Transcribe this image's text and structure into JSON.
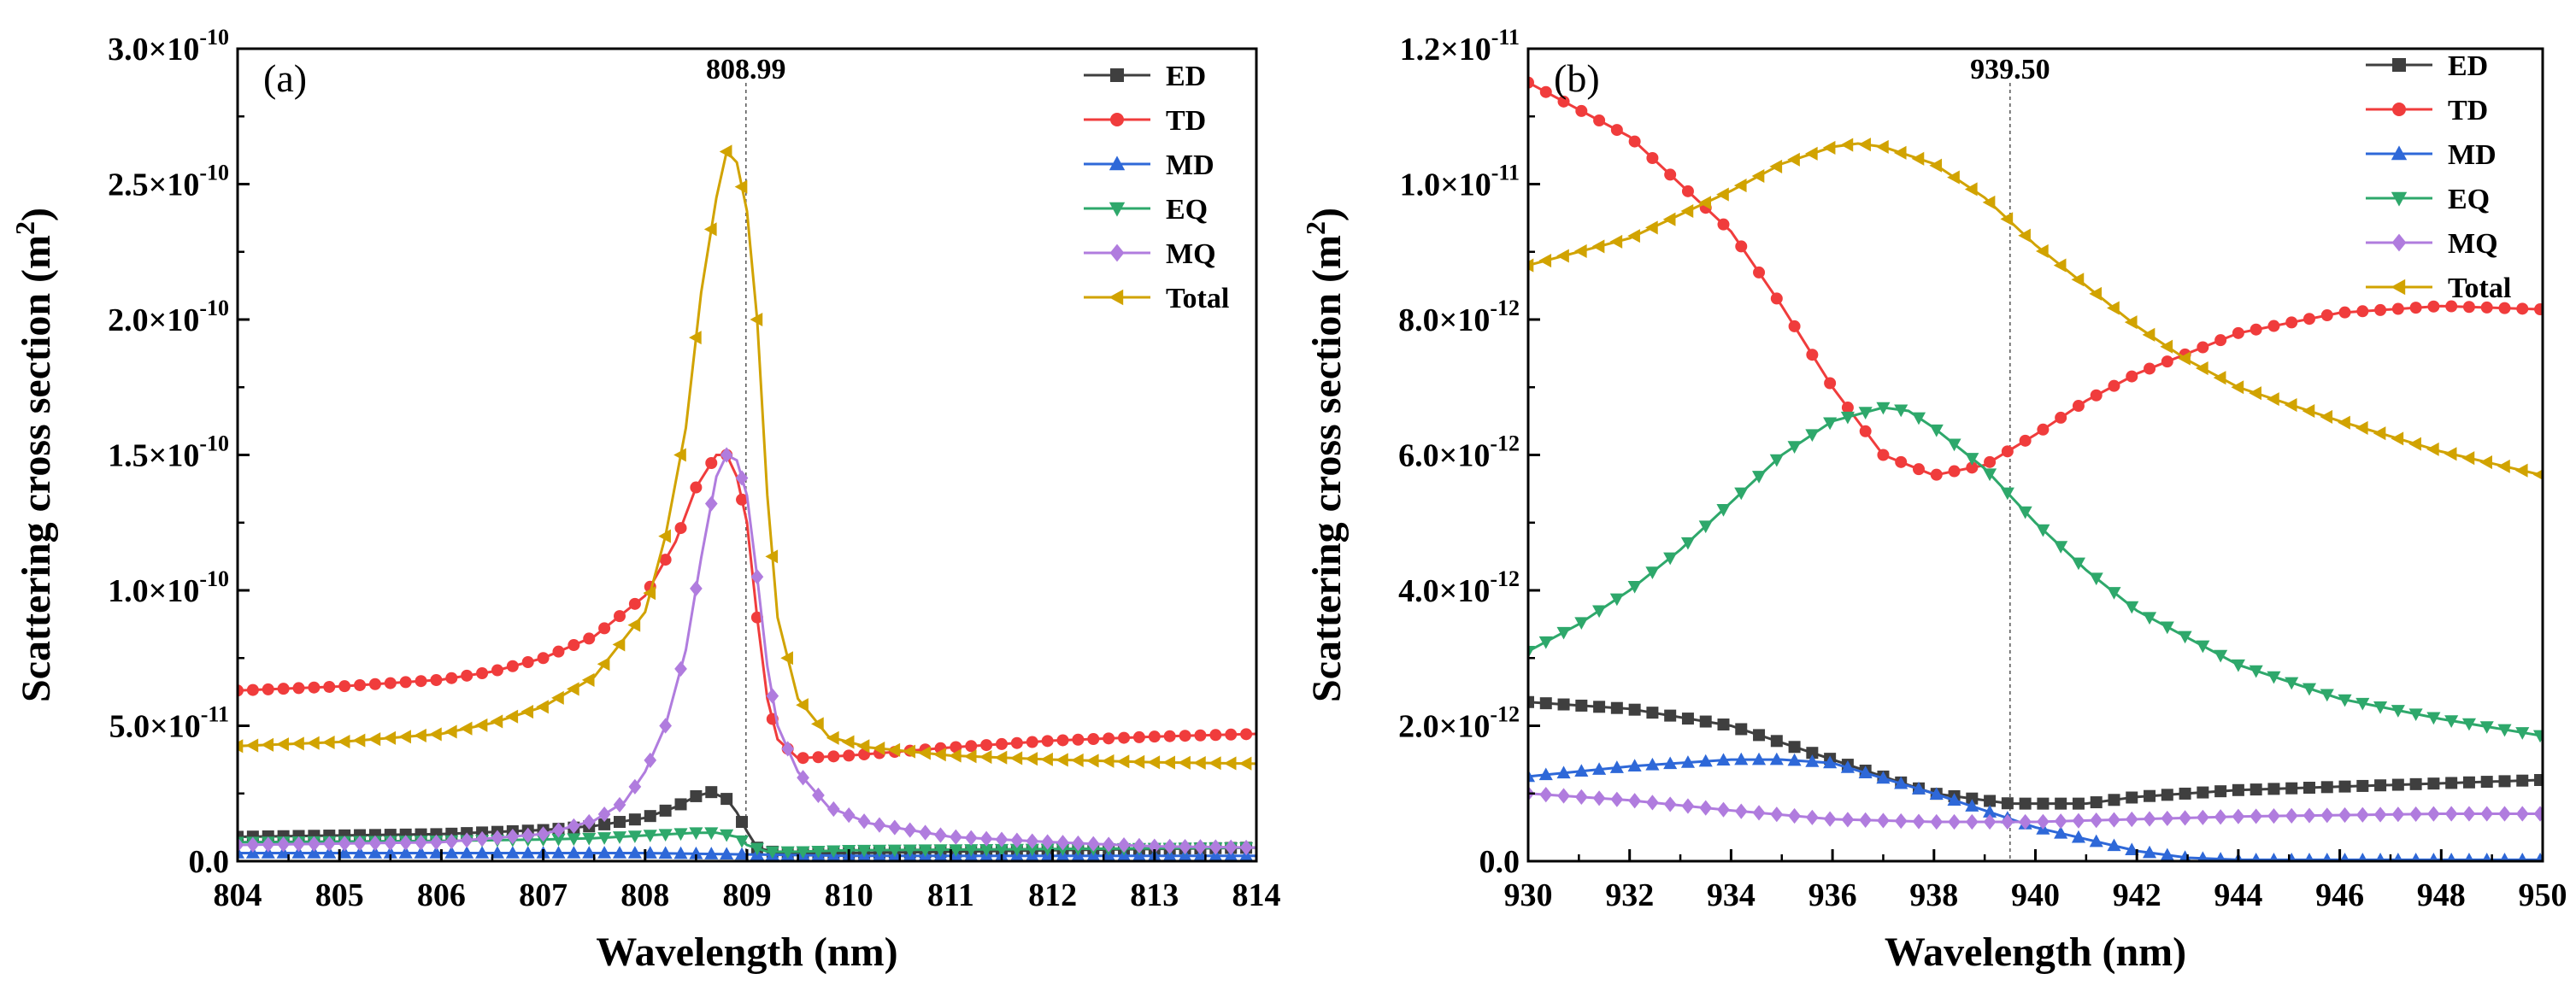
{
  "chart_data": [
    {
      "type": "line",
      "panel_label": "(a)",
      "xlabel": "Wavelength (nm)",
      "ylabel": "Scattering cross section (m²)",
      "ylabel_main": "Scattering cross section (m",
      "ylabel_sup": "2",
      "ylabel_close": ")",
      "xlim": [
        804,
        814
      ],
      "ylim": [
        0,
        3e-10
      ],
      "xticks": [
        804,
        805,
        806,
        807,
        808,
        809,
        810,
        811,
        812,
        813,
        814
      ],
      "yticks": [
        0,
        5e-11,
        1e-10,
        1.5e-10,
        2e-10,
        2.5e-10,
        3e-10
      ],
      "ytick_labels": [
        {
          "mant": "0.0",
          "exp": ""
        },
        {
          "mant": "5.0×10",
          "exp": "-11"
        },
        {
          "mant": "1.0×10",
          "exp": "-10"
        },
        {
          "mant": "1.5×10",
          "exp": "-10"
        },
        {
          "mant": "2.0×10",
          "exp": "-10"
        },
        {
          "mant": "2.5×10",
          "exp": "-10"
        },
        {
          "mant": "3.0×10",
          "exp": "-10"
        }
      ],
      "annotation": {
        "x": 808.99,
        "label": "808.99"
      },
      "legend_position": "top-right",
      "series": [
        {
          "name": "ED",
          "color": "#3f3f3f",
          "marker": "square",
          "x": [
            804,
            806,
            807,
            807.5,
            808,
            808.3,
            808.5,
            808.65,
            808.8,
            808.9,
            809,
            809.1,
            809.3,
            810,
            812,
            814
          ],
          "y": [
            9e-12,
            1e-11,
            1.15e-11,
            1.3e-11,
            1.6e-11,
            2e-11,
            2.4e-11,
            2.55e-11,
            2.3e-11,
            1.8e-11,
            1.1e-11,
            5e-12,
            3e-12,
            3e-12,
            4e-12,
            5e-12
          ]
        },
        {
          "name": "TD",
          "color": "#f03c3c",
          "marker": "circle",
          "x": [
            804,
            805,
            806,
            806.5,
            807,
            807.5,
            808,
            808.3,
            808.5,
            808.7,
            808.8,
            808.9,
            809,
            809.1,
            809.2,
            809.3,
            809.5,
            810,
            811,
            812,
            813,
            814
          ],
          "y": [
            6.3e-11,
            6.45e-11,
            6.7e-11,
            7e-11,
            7.5e-11,
            8.3e-11,
            9.8e-11,
            1.18e-10,
            1.38e-10,
            1.5e-10,
            1.5e-10,
            1.42e-10,
            1.25e-10,
            9e-11,
            6e-11,
            4.5e-11,
            3.8e-11,
            3.9e-11,
            4.2e-11,
            4.45e-11,
            4.6e-11,
            4.7e-11
          ]
        },
        {
          "name": "MD",
          "color": "#2e68d8",
          "marker": "triangle-up",
          "x": [
            804,
            806,
            808,
            809,
            810,
            812,
            814
          ],
          "y": [
            3e-12,
            3e-12,
            3e-12,
            2.5e-12,
            2e-12,
            2e-12,
            2e-12
          ]
        },
        {
          "name": "EQ",
          "color": "#2ea86b",
          "marker": "triangle-down",
          "x": [
            804,
            806,
            807,
            807.5,
            808,
            808.5,
            808.7,
            808.9,
            809,
            809.2,
            809.5,
            810,
            812,
            814
          ],
          "y": [
            7e-12,
            7.5e-12,
            8e-12,
            8.5e-12,
            9.5e-12,
            1.05e-11,
            1.05e-11,
            9e-12,
            6e-12,
            3.5e-12,
            3.5e-12,
            4e-12,
            4.5e-12,
            5e-12
          ]
        },
        {
          "name": "MQ",
          "color": "#b07cde",
          "marker": "diamond",
          "x": [
            804,
            806,
            807,
            807.5,
            807.8,
            808,
            808.2,
            808.4,
            808.55,
            808.7,
            808.8,
            808.9,
            809,
            809.1,
            809.2,
            809.3,
            809.5,
            809.8,
            810.2,
            811,
            812,
            813,
            814
          ],
          "y": [
            6e-12,
            7e-12,
            1e-11,
            1.5e-11,
            2.2e-11,
            3.3e-11,
            5e-11,
            7.8e-11,
            1.12e-10,
            1.42e-10,
            1.5e-10,
            1.48e-10,
            1.35e-10,
            1.05e-10,
            7.2e-11,
            5e-11,
            3.3e-11,
            2e-11,
            1.4e-11,
            9e-12,
            7e-12,
            5.5e-12,
            5e-12
          ]
        },
        {
          "name": "Total",
          "color": "#d1a300",
          "marker": "triangle-left",
          "x": [
            804,
            805,
            806,
            806.5,
            807,
            807.5,
            808,
            808.2,
            808.4,
            808.55,
            808.7,
            808.8,
            808.9,
            809,
            809.1,
            809.2,
            809.3,
            809.5,
            809.8,
            810.2,
            811,
            812,
            813,
            814
          ],
          "y": [
            4.25e-11,
            4.4e-11,
            4.7e-11,
            5.1e-11,
            5.7e-11,
            6.8e-11,
            9.2e-11,
            1.2e-10,
            1.6e-10,
            2.1e-10,
            2.45e-10,
            2.62e-10,
            2.58e-10,
            2.4e-10,
            2e-10,
            1.35e-10,
            9e-11,
            6e-11,
            4.6e-11,
            4.2e-11,
            3.9e-11,
            3.75e-11,
            3.65e-11,
            3.6e-11
          ]
        }
      ]
    },
    {
      "type": "line",
      "panel_label": "(b)",
      "xlabel": "Wavelength (nm)",
      "ylabel": "Scattering cross section (m²)",
      "ylabel_main": "Scattering cross section (m",
      "ylabel_sup": "2",
      "ylabel_close": ")",
      "xlim": [
        930,
        950
      ],
      "ylim": [
        0,
        1.2e-11
      ],
      "xticks": [
        930,
        932,
        934,
        936,
        938,
        940,
        942,
        944,
        946,
        948,
        950
      ],
      "yticks": [
        0,
        2e-12,
        4e-12,
        6e-12,
        8e-12,
        1e-11,
        1.2e-11
      ],
      "ytick_labels": [
        {
          "mant": "0.0",
          "exp": ""
        },
        {
          "mant": "2.0×10",
          "exp": "-12"
        },
        {
          "mant": "4.0×10",
          "exp": "-12"
        },
        {
          "mant": "6.0×10",
          "exp": "-12"
        },
        {
          "mant": "8.0×10",
          "exp": "-12"
        },
        {
          "mant": "1.0×10",
          "exp": "-11"
        },
        {
          "mant": "1.2×10",
          "exp": "-11"
        }
      ],
      "annotation": {
        "x": 939.5,
        "label": "939.50"
      },
      "legend_position": "top-right",
      "series": [
        {
          "name": "ED",
          "color": "#3f3f3f",
          "marker": "square",
          "x": [
            930,
            932,
            934,
            936,
            938,
            939.5,
            941,
            942,
            944,
            946,
            948,
            950
          ],
          "y": [
            2.35e-12,
            2.25e-12,
            2e-12,
            1.5e-12,
            1e-12,
            8.5e-13,
            8.5e-13,
            9.5e-13,
            1.05e-12,
            1.1e-12,
            1.15e-12,
            1.2e-12
          ]
        },
        {
          "name": "TD",
          "color": "#f03c3c",
          "marker": "circle",
          "x": [
            930,
            932,
            934,
            935,
            936,
            937,
            938,
            939,
            940,
            941,
            942,
            944,
            946,
            948,
            950
          ],
          "y": [
            1.15e-11,
            1.07e-11,
            9.3e-12,
            8.2e-12,
            7e-12,
            6e-12,
            5.7e-12,
            5.85e-12,
            6.3e-12,
            6.8e-12,
            7.2e-12,
            7.8e-12,
            8.1e-12,
            8.2e-12,
            8.15e-12
          ]
        },
        {
          "name": "MD",
          "color": "#2e68d8",
          "marker": "triangle-up",
          "x": [
            930,
            932,
            934,
            935,
            936,
            938,
            940,
            942,
            943,
            944,
            946,
            948,
            950
          ],
          "y": [
            1.25e-12,
            1.4e-12,
            1.5e-12,
            1.5e-12,
            1.45e-12,
            1e-12,
            5e-13,
            1.5e-13,
            5e-14,
            2e-14,
            2e-14,
            2e-14,
            2e-14
          ]
        },
        {
          "name": "EQ",
          "color": "#2ea86b",
          "marker": "triangle-down",
          "x": [
            930,
            931,
            932,
            933,
            934,
            935,
            936,
            937,
            937.5,
            938,
            939,
            940,
            941,
            942,
            944,
            946,
            948,
            950
          ],
          "y": [
            3.1e-12,
            3.5e-12,
            4e-12,
            4.6e-12,
            5.3e-12,
            6e-12,
            6.5e-12,
            6.7e-12,
            6.65e-12,
            6.4e-12,
            5.8e-12,
            5e-12,
            4.3e-12,
            3.7e-12,
            2.9e-12,
            2.4e-12,
            2.1e-12,
            1.85e-12
          ]
        },
        {
          "name": "MQ",
          "color": "#b07cde",
          "marker": "diamond",
          "x": [
            930,
            932,
            934,
            936,
            938,
            940,
            942,
            944,
            946,
            948,
            950
          ],
          "y": [
            1e-12,
            9e-13,
            7.5e-13,
            6.2e-13,
            5.8e-13,
            5.8e-13,
            6.2e-13,
            6.6e-13,
            6.8e-13,
            7e-13,
            7e-13
          ]
        },
        {
          "name": "Total",
          "color": "#d1a300",
          "marker": "triangle-left",
          "x": [
            930,
            932,
            934,
            935,
            936,
            936.5,
            937,
            938,
            939,
            940,
            941,
            942,
            943,
            944,
            946,
            948,
            950
          ],
          "y": [
            8.8e-12,
            9.2e-12,
            9.9e-12,
            1.03e-11,
            1.055e-11,
            1.06e-11,
            1.055e-11,
            1.03e-11,
            9.8e-12,
            9.1e-12,
            8.5e-12,
            7.9e-12,
            7.4e-12,
            7e-12,
            6.5e-12,
            6.05e-12,
            5.7e-12
          ]
        }
      ]
    }
  ]
}
